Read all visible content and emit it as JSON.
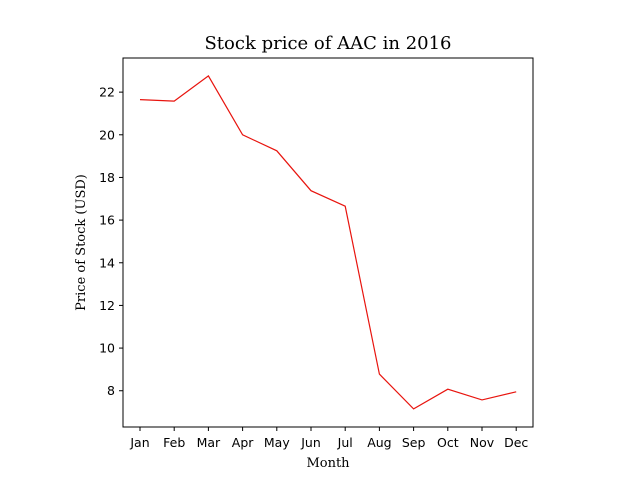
{
  "chart_data": {
    "type": "line",
    "title": "Stock price of AAC in 2016",
    "xlabel": "Month",
    "ylabel": "Price of Stock (USD)",
    "categories": [
      "Jan",
      "Feb",
      "Mar",
      "Apr",
      "May",
      "Jun",
      "Jul",
      "Aug",
      "Sep",
      "Oct",
      "Nov",
      "Dec"
    ],
    "series": [
      {
        "values": [
          21.65,
          21.58,
          22.76,
          20.0,
          19.25,
          17.38,
          16.65,
          8.78,
          7.15,
          8.07,
          7.57,
          7.95
        ],
        "color": "#e8140e"
      }
    ],
    "ylim": [
      6.3,
      23.6
    ],
    "yticks": [
      8,
      10,
      12,
      14,
      16,
      18,
      20,
      22
    ],
    "grid": false,
    "legend": "none"
  }
}
